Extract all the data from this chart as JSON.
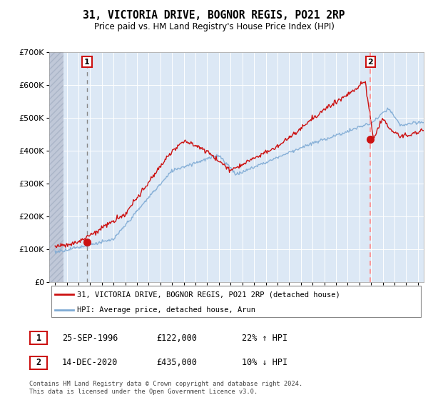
{
  "title": "31, VICTORIA DRIVE, BOGNOR REGIS, PO21 2RP",
  "subtitle": "Price paid vs. HM Land Registry's House Price Index (HPI)",
  "legend_line1": "31, VICTORIA DRIVE, BOGNOR REGIS, PO21 2RP (detached house)",
  "legend_line2": "HPI: Average price, detached house, Arun",
  "annotation1_date": "25-SEP-1996",
  "annotation1_price": "£122,000",
  "annotation1_hpi": "22% ↑ HPI",
  "annotation2_date": "14-DEC-2020",
  "annotation2_price": "£435,000",
  "annotation2_hpi": "10% ↓ HPI",
  "footer": "Contains HM Land Registry data © Crown copyright and database right 2024.\nThis data is licensed under the Open Government Licence v3.0.",
  "sale1_year": 1996.73,
  "sale1_price": 122000,
  "sale2_year": 2020.95,
  "sale2_price": 435000,
  "hpi_color": "#7eaad4",
  "price_color": "#cc1111",
  "sale1_dashed_color": "#888888",
  "sale2_dashed_color": "#ff8888",
  "plot_bg": "#dce8f5",
  "hatch_color": "#c0c8d8",
  "ylim": [
    0,
    700000
  ],
  "xlim_start": 1993.5,
  "xlim_end": 2025.5,
  "hatch_end": 1994.7
}
